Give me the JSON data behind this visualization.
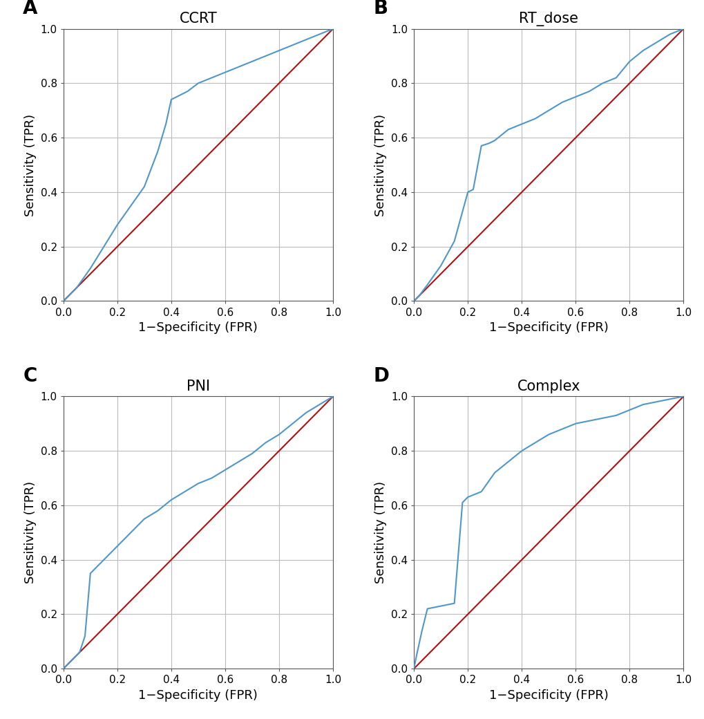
{
  "panels": [
    {
      "label": "A",
      "title": "CCRT",
      "roc_fpr": [
        0.0,
        0.02,
        0.05,
        0.1,
        0.15,
        0.2,
        0.25,
        0.3,
        0.35,
        0.38,
        0.4,
        0.42,
        0.44,
        0.46,
        0.5,
        0.55,
        0.6,
        0.65,
        0.7,
        0.75,
        0.8,
        0.85,
        0.9,
        0.95,
        1.0
      ],
      "roc_tpr": [
        0.0,
        0.02,
        0.05,
        0.12,
        0.2,
        0.28,
        0.35,
        0.42,
        0.55,
        0.65,
        0.74,
        0.75,
        0.76,
        0.77,
        0.8,
        0.82,
        0.84,
        0.86,
        0.88,
        0.9,
        0.92,
        0.94,
        0.96,
        0.98,
        1.0
      ]
    },
    {
      "label": "B",
      "title": "RT_dose",
      "roc_fpr": [
        0.0,
        0.02,
        0.05,
        0.1,
        0.15,
        0.2,
        0.22,
        0.25,
        0.28,
        0.3,
        0.35,
        0.4,
        0.45,
        0.5,
        0.55,
        0.6,
        0.65,
        0.7,
        0.75,
        0.8,
        0.85,
        0.9,
        0.95,
        1.0
      ],
      "roc_tpr": [
        0.0,
        0.02,
        0.06,
        0.13,
        0.22,
        0.4,
        0.41,
        0.57,
        0.58,
        0.59,
        0.63,
        0.65,
        0.67,
        0.7,
        0.73,
        0.75,
        0.77,
        0.8,
        0.82,
        0.88,
        0.92,
        0.95,
        0.98,
        1.0
      ]
    },
    {
      "label": "C",
      "title": "PNI",
      "roc_fpr": [
        0.0,
        0.02,
        0.04,
        0.06,
        0.08,
        0.1,
        0.11,
        0.12,
        0.15,
        0.2,
        0.25,
        0.3,
        0.35,
        0.4,
        0.45,
        0.5,
        0.55,
        0.6,
        0.65,
        0.7,
        0.75,
        0.8,
        0.85,
        0.9,
        0.95,
        1.0
      ],
      "roc_tpr": [
        0.0,
        0.02,
        0.04,
        0.06,
        0.12,
        0.35,
        0.36,
        0.37,
        0.4,
        0.45,
        0.5,
        0.55,
        0.58,
        0.62,
        0.65,
        0.68,
        0.7,
        0.73,
        0.76,
        0.79,
        0.83,
        0.86,
        0.9,
        0.94,
        0.97,
        1.0
      ]
    },
    {
      "label": "D",
      "title": "Complex",
      "roc_fpr": [
        0.0,
        0.01,
        0.03,
        0.05,
        0.1,
        0.15,
        0.18,
        0.2,
        0.25,
        0.3,
        0.35,
        0.4,
        0.45,
        0.5,
        0.55,
        0.6,
        0.65,
        0.7,
        0.75,
        0.8,
        0.85,
        0.9,
        0.95,
        1.0
      ],
      "roc_tpr": [
        0.0,
        0.05,
        0.14,
        0.22,
        0.23,
        0.24,
        0.61,
        0.63,
        0.65,
        0.72,
        0.76,
        0.8,
        0.83,
        0.86,
        0.88,
        0.9,
        0.91,
        0.92,
        0.93,
        0.95,
        0.97,
        0.98,
        0.99,
        1.0
      ]
    }
  ],
  "roc_color": "#4f97c8",
  "diag_color": "#b01010",
  "grid_color": "#bbbbbb",
  "bg_color": "#ffffff",
  "xlabel": "1−Specificity (FPR)",
  "ylabel": "Sensitivity (TPR)",
  "tick_labels": [
    "0.0",
    "0.2",
    "0.4",
    "0.6",
    "0.8",
    "1.0"
  ],
  "tick_vals": [
    0.0,
    0.2,
    0.4,
    0.6,
    0.8,
    1.0
  ],
  "tick_fontsize": 11,
  "label_fontsize": 13,
  "title_fontsize": 15,
  "panel_label_fontsize": 20,
  "line_width": 1.5
}
